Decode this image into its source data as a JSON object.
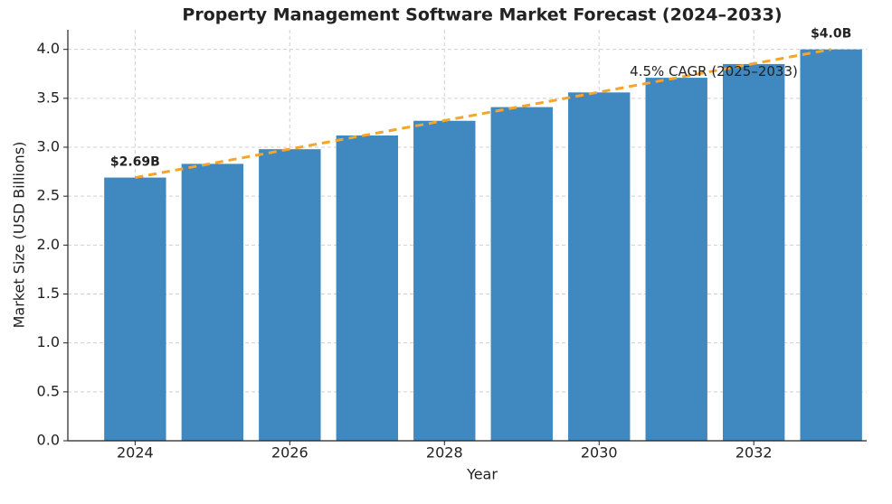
{
  "chart_data": {
    "type": "bar",
    "title": "Property Management Software Market Forecast (2024–2033)",
    "x_label": "Year",
    "y_label": "Market Size (USD Billions)",
    "x": [
      2024,
      2025,
      2026,
      2027,
      2028,
      2029,
      2030,
      2031,
      2032,
      2033
    ],
    "values": [
      2.69,
      2.83,
      2.98,
      3.12,
      3.27,
      3.41,
      3.56,
      3.71,
      3.85,
      4.0
    ],
    "value_labels": [
      "$2.69B",
      null,
      null,
      null,
      null,
      null,
      null,
      null,
      null,
      "$4.0B"
    ],
    "color": "#3f88c0",
    "trend_color": "#f5a52a",
    "annotation": "4.5% CAGR (2025–2033)",
    "xlim": [
      2023.13,
      2033.46
    ],
    "xticks": [
      2024,
      2026,
      2028,
      2030,
      2032
    ],
    "ylim": [
      0,
      4.2
    ],
    "yticks": [
      {
        "value": 0,
        "label": "0.0"
      },
      0.5,
      {
        "value": 1,
        "label": "1.0"
      },
      1.5,
      {
        "value": 2,
        "label": "2.0"
      },
      2.5,
      {
        "value": 3,
        "label": "3.0"
      },
      3.5,
      {
        "value": 4,
        "label": "4.0"
      }
    ],
    "grid": true
  }
}
